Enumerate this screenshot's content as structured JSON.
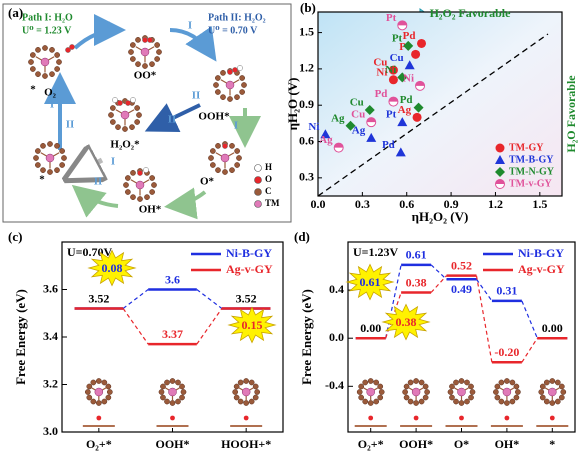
{
  "diagram": {
    "panel_label": "(a)",
    "path_1": {
      "title": "Path I: H₂O",
      "potential": "U⁰ = 1.23 V"
    },
    "path_2": {
      "title": "Path II: H₂O₂",
      "potential": "U⁰ = 0.70 V"
    },
    "states": [
      "*",
      "O₂",
      "OO*",
      "OOH*",
      "H₂O₂*",
      "O*",
      "OH*",
      "*"
    ],
    "step_labels": [
      "I",
      "II",
      "I",
      "I",
      "II",
      "I",
      "II",
      "I",
      "II"
    ],
    "legend": [
      "H",
      "O",
      "C",
      "TM"
    ]
  },
  "chart_data": [
    {
      "type": "scatter",
      "panel_label": "(b)",
      "xlabel": "ηH₂O₂ (V)",
      "ylabel": "ηH₂O (V)",
      "xlim": [
        0,
        1.65
      ],
      "ylim": [
        0.15,
        1.67
      ],
      "xticks": [
        {
          "value": 0,
          "label": "0.0"
        },
        0.3,
        0.6,
        0.9,
        1.2,
        1.5
      ],
      "yticks": [
        0.3,
        0.6,
        0.9,
        1.2,
        1.5
      ],
      "annotations": [
        {
          "text": "H₂O₂ Favorable",
          "color": "#1f8a2e"
        },
        {
          "text": "H₂O Favorable",
          "color": "#1f8a2e"
        }
      ],
      "legend": "bottom-right",
      "series": [
        {
          "name": "TM-GY",
          "color": "#e8262b",
          "marker": "circle",
          "labels": [
            "Cu",
            "Ni",
            "Pt",
            "Pd",
            "Ag"
          ],
          "x": [
            0.51,
            0.51,
            0.66,
            0.7,
            0.67
          ],
          "values": [
            1.19,
            1.11,
            1.32,
            1.41,
            0.8
          ]
        },
        {
          "name": "TM-B-GY",
          "color": "#1f35d8",
          "marker": "triangle",
          "labels": [
            "Ni",
            "Ag",
            "Pd",
            "Pt",
            "Cu"
          ],
          "x": [
            0.05,
            0.36,
            0.56,
            0.57,
            0.62
          ],
          "values": [
            0.66,
            0.63,
            0.51,
            0.76,
            1.23
          ]
        },
        {
          "name": "TM-N-GY",
          "color": "#1f8a2e",
          "marker": "diamond",
          "labels": [
            "Ag",
            "Cu",
            "Ni",
            "Pd",
            "Pt"
          ],
          "x": [
            0.22,
            0.35,
            0.57,
            0.68,
            0.61
          ],
          "values": [
            0.73,
            0.86,
            1.13,
            0.88,
            1.39
          ]
        },
        {
          "name": "TM-v-GY",
          "color": "#e0529a",
          "marker": "half-circle",
          "labels": [
            "Ag",
            "Cu",
            "Pd",
            "Ni",
            "Pt"
          ],
          "x": [
            0.14,
            0.36,
            0.51,
            0.69,
            0.57
          ],
          "values": [
            0.55,
            0.76,
            0.93,
            1.06,
            1.56
          ]
        }
      ]
    },
    {
      "type": "energy",
      "panel_label": "(c)",
      "ylabel": "Free Energy (eV)",
      "condition": "U=0.70V",
      "categories": [
        "O₂+*",
        "OOH*",
        "HOOH+*"
      ],
      "ylim": [
        3.0,
        3.8
      ],
      "yticks": [
        {
          "value": 3,
          "label": "3.0"
        },
        3.2,
        3.4,
        3.6
      ],
      "legend": "top-right",
      "series": [
        {
          "name": "Ni-B-GY",
          "color": "#1f2fe0",
          "values": [
            3.52,
            3.6,
            3.52
          ],
          "value_labels": [
            "3.52",
            "3.6",
            "3.52"
          ]
        },
        {
          "name": "Ag-v-GY",
          "color": "#e8262b",
          "values": [
            3.52,
            3.37,
            3.52
          ],
          "value_labels": [
            null,
            "3.37",
            null
          ]
        }
      ],
      "stars": [
        {
          "text": "0.08",
          "color": "#1f2fe0"
        },
        {
          "text": "0.15",
          "color": "#e8262b"
        }
      ]
    },
    {
      "type": "energy",
      "panel_label": "(d)",
      "ylabel": "Free Energy (eV)",
      "condition": "U=1.23V",
      "categories": [
        "O₂+*",
        "OOH*",
        "O*",
        "OH*",
        "*"
      ],
      "ylim": [
        -0.78,
        0.8
      ],
      "yticks": [
        -0.4,
        {
          "value": 0,
          "label": "0.0"
        },
        0.4
      ],
      "legend": "top-right",
      "series": [
        {
          "name": "Ni-B-GY",
          "color": "#1f2fe0",
          "values": [
            0,
            0.61,
            0.49,
            0.31,
            0
          ],
          "value_labels": [
            "0.00",
            "0.61",
            "0.49",
            "0.31",
            "0.00"
          ]
        },
        {
          "name": "Ag-v-GY",
          "color": "#e8262b",
          "values": [
            0,
            0.38,
            0.52,
            -0.2,
            0
          ],
          "value_labels": [
            null,
            "0.38",
            "0.52",
            "-0.20",
            null
          ]
        }
      ],
      "stars": [
        {
          "text": "0.61",
          "color": "#1f2fe0"
        },
        {
          "text": "0.38",
          "color": "#e8262b"
        }
      ]
    }
  ]
}
